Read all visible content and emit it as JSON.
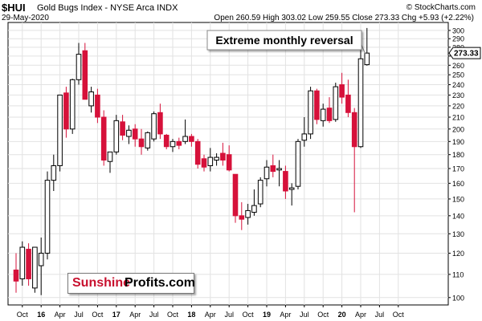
{
  "header": {
    "symbol": "$HUI",
    "description": "Gold Bugs Index - NYSE Arca INDX",
    "date": "29-May-2020",
    "ohlc": "Open 260.59  High 303.02  Low 259.55  Close 273.33  Chg +5.93 (+2.22%)",
    "brand": "© StockCharts.com"
  },
  "watermark": {
    "part1": "Sunshine",
    "part2": "Profits.com",
    "color1": "#c8102e",
    "color2": "#000000"
  },
  "annotation": "Extreme monthly reversal",
  "price_label": "273.33",
  "colors": {
    "up": "#ffffff",
    "down": "#d6113a",
    "outline": "#000000",
    "grid": "#e2e2e2"
  },
  "chart_data": {
    "type": "candlestick",
    "scale": "log",
    "period": "monthly",
    "ylim": [
      97,
      310
    ],
    "y_ticks": [
      100,
      110,
      120,
      130,
      140,
      150,
      160,
      170,
      180,
      190,
      200,
      210,
      220,
      230,
      240,
      250,
      260,
      270,
      280,
      290,
      300
    ],
    "x_tick_labels": [
      "Oct",
      "16",
      "Apr",
      "Jul",
      "Oct",
      "17",
      "Apr",
      "Jul",
      "Oct",
      "18",
      "Apr",
      "Jul",
      "Oct",
      "19",
      "Apr",
      "Jul",
      "Oct",
      "20",
      "Apr",
      "Jul",
      "Oct"
    ],
    "x_tick_months": [
      "2015-10",
      "2016-01",
      "2016-04",
      "2016-07",
      "2016-10",
      "2017-01",
      "2017-04",
      "2017-07",
      "2017-10",
      "2018-01",
      "2018-04",
      "2018-07",
      "2018-10",
      "2019-01",
      "2019-04",
      "2019-07",
      "2019-10",
      "2020-01",
      "2020-04",
      "2020-07",
      "2020-10"
    ],
    "candles": [
      {
        "month": "2015-09",
        "open": 112,
        "high": 120,
        "low": 102,
        "close": 107
      },
      {
        "month": "2015-10",
        "open": 108,
        "high": 126,
        "low": 105,
        "close": 123
      },
      {
        "month": "2015-11",
        "open": 122,
        "high": 125,
        "low": 105,
        "close": 108
      },
      {
        "month": "2015-12",
        "open": 104,
        "high": 122,
        "low": 102,
        "close": 123
      },
      {
        "month": "2016-01",
        "open": 114,
        "high": 128,
        "low": 101,
        "close": 120
      },
      {
        "month": "2016-02",
        "open": 120,
        "high": 168,
        "low": 117,
        "close": 162
      },
      {
        "month": "2016-03",
        "open": 162,
        "high": 180,
        "low": 155,
        "close": 172
      },
      {
        "month": "2016-04",
        "open": 172,
        "high": 230,
        "low": 168,
        "close": 230
      },
      {
        "month": "2016-05",
        "open": 232,
        "high": 238,
        "low": 193,
        "close": 200
      },
      {
        "month": "2016-06",
        "open": 200,
        "high": 246,
        "low": 196,
        "close": 245
      },
      {
        "month": "2016-07",
        "open": 245,
        "high": 285,
        "low": 240,
        "close": 272
      },
      {
        "month": "2016-08",
        "open": 276,
        "high": 285,
        "low": 228,
        "close": 226
      },
      {
        "month": "2016-09",
        "open": 220,
        "high": 238,
        "low": 214,
        "close": 233
      },
      {
        "month": "2016-10",
        "open": 230,
        "high": 236,
        "low": 205,
        "close": 210
      },
      {
        "month": "2016-11",
        "open": 210,
        "high": 216,
        "low": 172,
        "close": 176
      },
      {
        "month": "2016-12",
        "open": 175,
        "high": 182,
        "low": 167,
        "close": 182
      },
      {
        "month": "2017-01",
        "open": 182,
        "high": 212,
        "low": 180,
        "close": 207
      },
      {
        "month": "2017-02",
        "open": 206,
        "high": 212,
        "low": 191,
        "close": 195
      },
      {
        "month": "2017-03",
        "open": 194,
        "high": 203,
        "low": 188,
        "close": 199
      },
      {
        "month": "2017-04",
        "open": 200,
        "high": 204,
        "low": 186,
        "close": 192
      },
      {
        "month": "2017-05",
        "open": 192,
        "high": 200,
        "low": 180,
        "close": 186
      },
      {
        "month": "2017-06",
        "open": 185,
        "high": 198,
        "low": 183,
        "close": 197
      },
      {
        "month": "2017-07",
        "open": 192,
        "high": 215,
        "low": 190,
        "close": 213
      },
      {
        "month": "2017-08",
        "open": 214,
        "high": 222,
        "low": 192,
        "close": 196
      },
      {
        "month": "2017-09",
        "open": 195,
        "high": 196,
        "low": 184,
        "close": 186
      },
      {
        "month": "2017-10",
        "open": 186,
        "high": 192,
        "low": 182,
        "close": 190
      },
      {
        "month": "2017-11",
        "open": 190,
        "high": 193,
        "low": 184,
        "close": 187
      },
      {
        "month": "2017-12",
        "open": 190,
        "high": 208,
        "low": 188,
        "close": 194
      },
      {
        "month": "2018-01",
        "open": 194,
        "high": 196,
        "low": 186,
        "close": 190
      },
      {
        "month": "2018-02",
        "open": 190,
        "high": 192,
        "low": 170,
        "close": 173
      },
      {
        "month": "2018-03",
        "open": 177,
        "high": 180,
        "low": 168,
        "close": 171
      },
      {
        "month": "2018-04",
        "open": 172,
        "high": 185,
        "low": 168,
        "close": 178
      },
      {
        "month": "2018-05",
        "open": 176,
        "high": 181,
        "low": 172,
        "close": 178
      },
      {
        "month": "2018-06",
        "open": 181,
        "high": 189,
        "low": 172,
        "close": 176
      },
      {
        "month": "2018-07",
        "open": 180,
        "high": 187,
        "low": 168,
        "close": 169
      },
      {
        "month": "2018-08",
        "open": 166,
        "high": 166,
        "low": 136,
        "close": 140
      },
      {
        "month": "2018-09",
        "open": 140,
        "high": 148,
        "low": 132,
        "close": 138
      },
      {
        "month": "2018-10",
        "open": 139,
        "high": 147,
        "low": 135,
        "close": 143
      },
      {
        "month": "2018-11",
        "open": 142,
        "high": 156,
        "low": 140,
        "close": 146
      },
      {
        "month": "2018-12",
        "open": 147,
        "high": 164,
        "low": 145,
        "close": 162
      },
      {
        "month": "2019-01",
        "open": 163,
        "high": 176,
        "low": 158,
        "close": 171
      },
      {
        "month": "2019-02",
        "open": 172,
        "high": 180,
        "low": 164,
        "close": 168
      },
      {
        "month": "2019-03",
        "open": 169,
        "high": 176,
        "low": 158,
        "close": 170
      },
      {
        "month": "2019-04",
        "open": 168,
        "high": 172,
        "low": 150,
        "close": 155
      },
      {
        "month": "2019-05",
        "open": 156,
        "high": 160,
        "low": 146,
        "close": 157
      },
      {
        "month": "2019-06",
        "open": 158,
        "high": 192,
        "low": 156,
        "close": 190
      },
      {
        "month": "2019-07",
        "open": 191,
        "high": 210,
        "low": 186,
        "close": 196
      },
      {
        "month": "2019-08",
        "open": 196,
        "high": 238,
        "low": 192,
        "close": 234
      },
      {
        "month": "2019-09",
        "open": 234,
        "high": 236,
        "low": 204,
        "close": 208
      },
      {
        "month": "2019-10",
        "open": 207,
        "high": 222,
        "low": 202,
        "close": 217
      },
      {
        "month": "2019-11",
        "open": 218,
        "high": 228,
        "low": 205,
        "close": 207
      },
      {
        "month": "2019-12",
        "open": 208,
        "high": 242,
        "low": 206,
        "close": 238
      },
      {
        "month": "2020-01",
        "open": 240,
        "high": 252,
        "low": 222,
        "close": 228
      },
      {
        "month": "2020-02",
        "open": 230,
        "high": 245,
        "low": 210,
        "close": 214
      },
      {
        "month": "2020-03",
        "open": 214,
        "high": 218,
        "low": 142,
        "close": 186
      },
      {
        "month": "2020-04",
        "open": 186,
        "high": 288,
        "low": 185,
        "close": 267
      },
      {
        "month": "2020-05",
        "open": 260.59,
        "high": 303.02,
        "low": 259.55,
        "close": 273.33
      }
    ]
  }
}
